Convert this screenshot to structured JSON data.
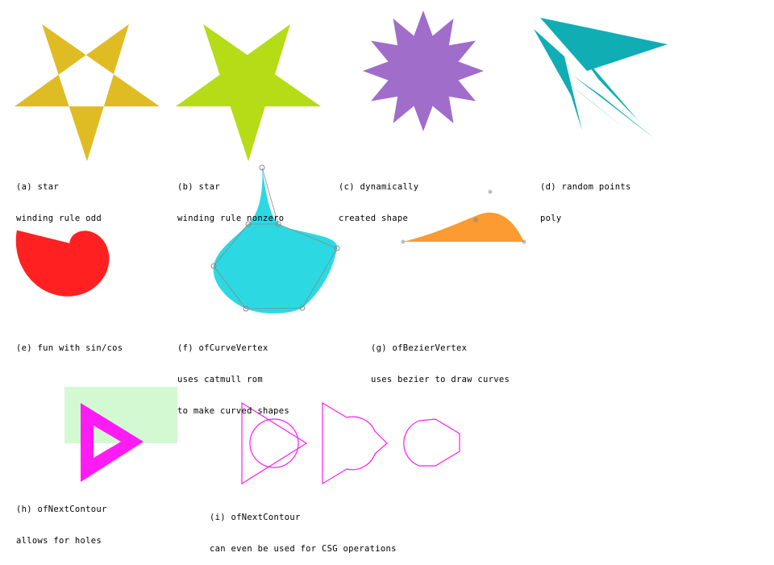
{
  "colors": {
    "star_a": "#E0BC24",
    "star_b": "#B5DC16",
    "burst": "#A06DCB",
    "random_poly": "#10ADB5",
    "spiral": "#FF2121",
    "curve_shape": "#2CD9E3",
    "bezier_shape": "#FB9B32",
    "contour_bg": "#D3F9D3",
    "contour_fg": "#FF1CF4",
    "csg_stroke": "#FF1CF4",
    "control_point": "#888888"
  },
  "captions": {
    "a": [
      "(a) star",
      "winding rule odd"
    ],
    "b": [
      "(b) star",
      "winding rule nonzero"
    ],
    "c": [
      "(c) dynamically",
      "created shape"
    ],
    "d": [
      "(d) random points",
      "poly"
    ],
    "e": [
      "(e) fun with sin/cos"
    ],
    "f": [
      "(f) ofCurveVertex",
      "uses catmull rom",
      "to make curved shapes"
    ],
    "g": [
      "(g) ofBezierVertex",
      "uses bezier to draw curves"
    ],
    "h": [
      "(h) ofNextContour",
      "allows for holes"
    ],
    "i": [
      "(i) ofNextContour",
      "can even be used for CSG operations"
    ]
  }
}
